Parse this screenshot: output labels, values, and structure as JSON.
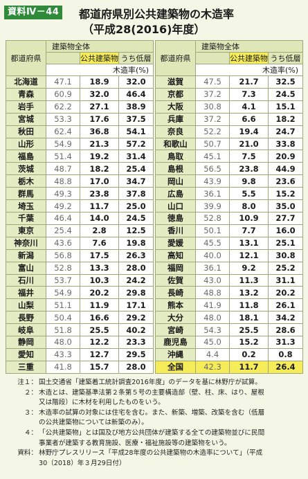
{
  "header": {
    "badge": "資料Ⅳ－44",
    "title_line1": "都道府県別公共建築物の木造率",
    "title_line2": "（平成28(2016)年度）"
  },
  "table": {
    "pref_header": "都道府県",
    "group_header": "建築物全体",
    "col_public": "公共建築物",
    "col_low": "うち低層",
    "unit_header": "木造率(%)",
    "left_rows": [
      {
        "pref": "北海道",
        "all": "47.1",
        "public": "18.9",
        "low": "32.0"
      },
      {
        "pref": "青森",
        "all": "60.9",
        "public": "32.0",
        "low": "46.4"
      },
      {
        "pref": "岩手",
        "all": "62.2",
        "public": "27.1",
        "low": "38.9"
      },
      {
        "pref": "宮城",
        "all": "53.3",
        "public": "17.6",
        "low": "37.5"
      },
      {
        "pref": "秋田",
        "all": "62.4",
        "public": "36.8",
        "low": "54.1"
      },
      {
        "pref": "山形",
        "all": "54.9",
        "public": "21.3",
        "low": "57.2"
      },
      {
        "pref": "福島",
        "all": "51.4",
        "public": "19.2",
        "low": "31.4"
      },
      {
        "pref": "茨城",
        "all": "48.7",
        "public": "18.2",
        "low": "25.4"
      },
      {
        "pref": "栃木",
        "all": "48.8",
        "public": "17.0",
        "low": "34.7"
      },
      {
        "pref": "群馬",
        "all": "49.3",
        "public": "23.8",
        "low": "37.8"
      },
      {
        "pref": "埼玉",
        "all": "49.2",
        "public": "11.7",
        "low": "25.0"
      },
      {
        "pref": "千葉",
        "all": "46.4",
        "public": "14.0",
        "low": "24.5"
      },
      {
        "pref": "東京",
        "all": "25.4",
        "public": "2.8",
        "low": "12.5"
      },
      {
        "pref": "神奈川",
        "all": "43.6",
        "public": "7.6",
        "low": "19.8"
      },
      {
        "pref": "新潟",
        "all": "56.8",
        "public": "17.5",
        "low": "26.3"
      },
      {
        "pref": "富山",
        "all": "52.8",
        "public": "13.3",
        "low": "28.0"
      },
      {
        "pref": "石川",
        "all": "53.7",
        "public": "10.3",
        "low": "24.2"
      },
      {
        "pref": "福井",
        "all": "54.9",
        "public": "20.2",
        "low": "29.8"
      },
      {
        "pref": "山梨",
        "all": "51.1",
        "public": "11.9",
        "low": "17.1"
      },
      {
        "pref": "長野",
        "all": "50.4",
        "public": "16.6",
        "low": "29.2"
      },
      {
        "pref": "岐阜",
        "all": "51.8",
        "public": "25.5",
        "low": "40.2"
      },
      {
        "pref": "静岡",
        "all": "48.0",
        "public": "12.2",
        "low": "23.3"
      },
      {
        "pref": "愛知",
        "all": "43.3",
        "public": "12.7",
        "low": "29.5"
      },
      {
        "pref": "三重",
        "all": "41.8",
        "public": "15.7",
        "low": "28.0"
      }
    ],
    "right_rows": [
      {
        "pref": "滋賀",
        "all": "47.5",
        "public": "21.7",
        "low": "32.5"
      },
      {
        "pref": "京都",
        "all": "37.2",
        "public": "7.3",
        "low": "24.5"
      },
      {
        "pref": "大阪",
        "all": "30.8",
        "public": "4.1",
        "low": "15.1"
      },
      {
        "pref": "兵庫",
        "all": "37.2",
        "public": "6.6",
        "low": "18.2"
      },
      {
        "pref": "奈良",
        "all": "52.2",
        "public": "19.4",
        "low": "24.7"
      },
      {
        "pref": "和歌山",
        "all": "50.7",
        "public": "21.0",
        "low": "33.8"
      },
      {
        "pref": "鳥取",
        "all": "45.1",
        "public": "7.5",
        "low": "20.9"
      },
      {
        "pref": "島根",
        "all": "56.5",
        "public": "23.8",
        "low": "44.9"
      },
      {
        "pref": "岡山",
        "all": "43.9",
        "public": "9.8",
        "low": "23.6"
      },
      {
        "pref": "広島",
        "all": "36.1",
        "public": "5.5",
        "low": "15.2"
      },
      {
        "pref": "山口",
        "all": "39.9",
        "public": "8.0",
        "low": "35.0"
      },
      {
        "pref": "徳島",
        "all": "52.8",
        "public": "10.9",
        "low": "27.7"
      },
      {
        "pref": "香川",
        "all": "50.1",
        "public": "7.7",
        "low": "16.0"
      },
      {
        "pref": "愛媛",
        "all": "45.5",
        "public": "13.1",
        "low": "25.1"
      },
      {
        "pref": "高知",
        "all": "40.0",
        "public": "12.1",
        "low": "30.8"
      },
      {
        "pref": "福岡",
        "all": "36.1",
        "public": "9.2",
        "low": "25.2"
      },
      {
        "pref": "佐賀",
        "all": "43.0",
        "public": "11.3",
        "low": "31.1"
      },
      {
        "pref": "長崎",
        "all": "48.8",
        "public": "13.2",
        "low": "20.2"
      },
      {
        "pref": "熊本",
        "all": "41.9",
        "public": "11.8",
        "low": "26.1"
      },
      {
        "pref": "大分",
        "all": "48.0",
        "public": "18.1",
        "low": "34.2"
      },
      {
        "pref": "宮崎",
        "all": "54.3",
        "public": "25.5",
        "low": "28.6"
      },
      {
        "pref": "鹿児島",
        "all": "45.0",
        "public": "15.2",
        "low": "31.3"
      },
      {
        "pref": "沖縄",
        "all": "4.4",
        "public": "0.2",
        "low": "0.8"
      },
      {
        "pref": "全国",
        "all": "42.3",
        "public": "11.7",
        "low": "26.4",
        "total": true
      }
    ]
  },
  "notes": [
    {
      "label": "注１：",
      "lines": [
        "国土交通省「建築着工統計調査2016年度」のデータを基に林野庁が試算。"
      ]
    },
    {
      "label": "２：",
      "lines": [
        "木造とは、建築基準法第２条第５号の主要構造部（壁、柱、床、はり、屋根",
        "又は階段）に木材を利用したものをいう。"
      ]
    },
    {
      "label": "３：",
      "lines": [
        "木造率の試算の対象には住宅を含む。また、新築、増築、改築を含む（低層",
        "の公共建築物については新築のみ）。"
      ]
    },
    {
      "label": "４：",
      "lines": [
        "「公共建築物」とは国及び地方公共団体が建築する全ての建築物並びに民間",
        "事業者が建築する教育施設、医療・福祉施設等の建築物をいう。"
      ]
    },
    {
      "label": "資料：",
      "lines": [
        "林野庁プレスリリース「平成28年度の公共建築物の木造率について」（平成",
        "30（2018）年３月29日付）"
      ]
    }
  ],
  "colors": {
    "background": "#f4f6e6",
    "badge": "#2f8a3a",
    "header_cell": "#dfe7b9",
    "highlight_yellow": "#f6ec5a",
    "pref_cell": "#e4ecc4"
  }
}
